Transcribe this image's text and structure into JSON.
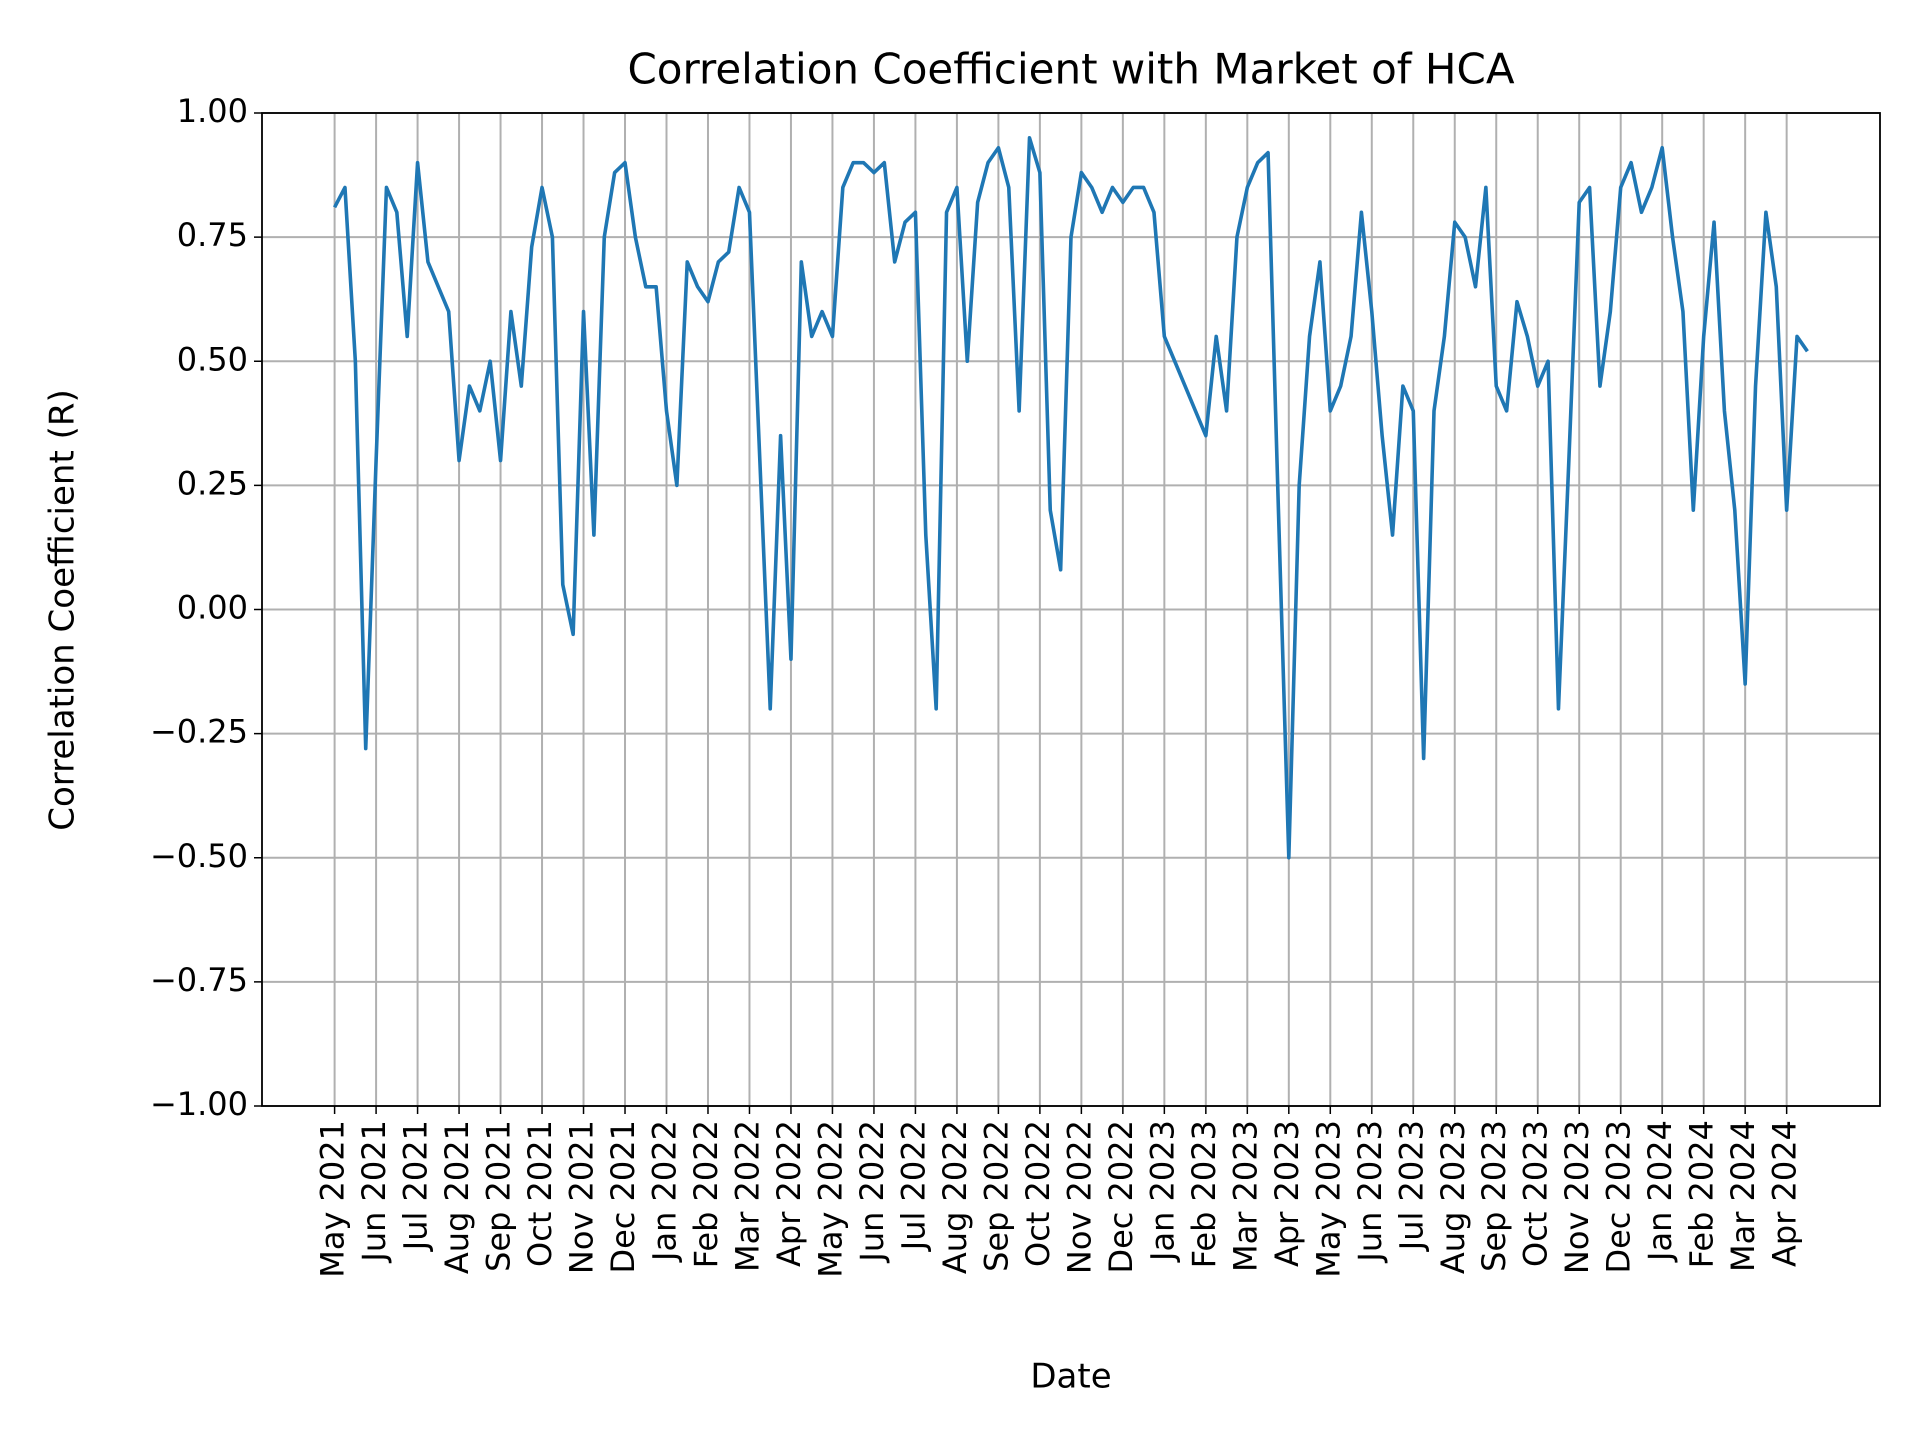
{
  "chart_data": {
    "type": "line",
    "title": "Correlation Coefficient with Market of HCA",
    "x_label": "Date",
    "y_label": "Correlation Coefficient (R)",
    "grid": true,
    "series": [
      {
        "name": "HCA",
        "color": "#1f77b4",
        "values": [
          0.81,
          0.85,
          0.5,
          -0.28,
          0.3,
          0.85,
          0.8,
          0.55,
          0.9,
          0.7,
          0.65,
          0.6,
          0.3,
          0.45,
          0.4,
          0.5,
          0.3,
          0.6,
          0.45,
          0.73,
          0.85,
          0.75,
          0.05,
          -0.05,
          0.6,
          0.15,
          0.75,
          0.88,
          0.9,
          0.75,
          0.65,
          0.65,
          0.4,
          0.25,
          0.7,
          0.65,
          0.62,
          0.7,
          0.72,
          0.85,
          0.8,
          0.3,
          -0.2,
          0.35,
          -0.1,
          0.7,
          0.55,
          0.6,
          0.55,
          0.85,
          0.9,
          0.9,
          0.88,
          0.9,
          0.7,
          0.78,
          0.8,
          0.15,
          -0.2,
          0.8,
          0.85,
          0.5,
          0.82,
          0.9,
          0.93,
          0.85,
          0.4,
          0.95,
          0.88,
          0.2,
          0.08,
          0.75,
          0.88,
          0.85,
          0.8,
          0.85,
          0.82,
          0.85,
          0.85,
          0.8,
          0.55,
          0.5,
          0.45,
          0.4,
          0.35,
          0.55,
          0.4,
          0.75,
          0.85,
          0.9,
          0.92,
          0.2,
          -0.5,
          0.25,
          0.55,
          0.7,
          0.4,
          0.45,
          0.55,
          0.8,
          0.6,
          0.35,
          0.15,
          0.45,
          0.4,
          -0.3,
          0.4,
          0.55,
          0.78,
          0.75,
          0.65,
          0.85,
          0.45,
          0.4,
          0.62,
          0.55,
          0.45,
          0.5,
          -0.2,
          0.3,
          0.82,
          0.85,
          0.45,
          0.6,
          0.85,
          0.9,
          0.8,
          0.85,
          0.93,
          0.75,
          0.6,
          0.2,
          0.55,
          0.78,
          0.4,
          0.2,
          -0.15,
          0.45,
          0.8,
          0.65,
          0.2,
          0.55,
          0.52
        ]
      }
    ],
    "xlim": [
      -7,
      149
    ],
    "xticks": [
      {
        "value": 0,
        "label": "May 2021"
      },
      {
        "value": 4,
        "label": "Jun 2021"
      },
      {
        "value": 8,
        "label": "Jul 2021"
      },
      {
        "value": 12,
        "label": "Aug 2021"
      },
      {
        "value": 16,
        "label": "Sep 2021"
      },
      {
        "value": 20,
        "label": "Oct 2021"
      },
      {
        "value": 24,
        "label": "Nov 2021"
      },
      {
        "value": 28,
        "label": "Dec 2021"
      },
      {
        "value": 32,
        "label": "Jan 2022"
      },
      {
        "value": 36,
        "label": "Feb 2022"
      },
      {
        "value": 40,
        "label": "Mar 2022"
      },
      {
        "value": 44,
        "label": "Apr 2022"
      },
      {
        "value": 48,
        "label": "May 2022"
      },
      {
        "value": 52,
        "label": "Jun 2022"
      },
      {
        "value": 56,
        "label": "Jul 2022"
      },
      {
        "value": 60,
        "label": "Aug 2022"
      },
      {
        "value": 64,
        "label": "Sep 2022"
      },
      {
        "value": 68,
        "label": "Oct 2022"
      },
      {
        "value": 72,
        "label": "Nov 2022"
      },
      {
        "value": 76,
        "label": "Dec 2022"
      },
      {
        "value": 80,
        "label": "Jan 2023"
      },
      {
        "value": 84,
        "label": "Feb 2023"
      },
      {
        "value": 88,
        "label": "Mar 2023"
      },
      {
        "value": 92,
        "label": "Apr 2023"
      },
      {
        "value": 96,
        "label": "May 2023"
      },
      {
        "value": 100,
        "label": "Jun 2023"
      },
      {
        "value": 104,
        "label": "Jul 2023"
      },
      {
        "value": 108,
        "label": "Aug 2023"
      },
      {
        "value": 112,
        "label": "Sep 2023"
      },
      {
        "value": 116,
        "label": "Oct 2023"
      },
      {
        "value": 120,
        "label": "Nov 2023"
      },
      {
        "value": 124,
        "label": "Dec 2023"
      },
      {
        "value": 128,
        "label": "Jan 2024"
      },
      {
        "value": 132,
        "label": "Feb 2024"
      },
      {
        "value": 136,
        "label": "Mar 2024"
      },
      {
        "value": 140,
        "label": "Apr 2024"
      }
    ],
    "ylim": [
      -1,
      1
    ],
    "yticks": [
      {
        "value": -1,
        "label": "−1.00"
      },
      {
        "value": -0.75,
        "label": "−0.75"
      },
      {
        "value": -0.5,
        "label": "−0.50"
      },
      {
        "value": -0.25,
        "label": "−0.25"
      },
      {
        "value": 0,
        "label": "0.00"
      },
      {
        "value": 0.25,
        "label": "0.25"
      },
      {
        "value": 0.5,
        "label": "0.50"
      },
      {
        "value": 0.75,
        "label": "0.75"
      },
      {
        "value": 1,
        "label": "1.00"
      }
    ]
  }
}
